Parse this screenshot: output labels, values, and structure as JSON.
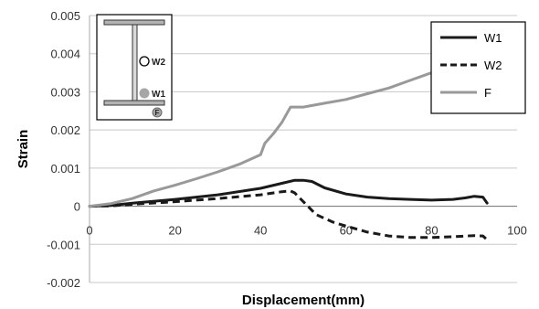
{
  "chart_data": {
    "type": "line",
    "title": "",
    "xlabel": "Displacement(mm)",
    "ylabel": "Strain",
    "xlim": [
      0,
      100
    ],
    "ylim": [
      -0.002,
      0.005
    ],
    "grid": true,
    "legend_position": "top-right",
    "x_ticks": [
      "0",
      "20",
      "40",
      "60",
      "80",
      "100"
    ],
    "y_ticks": [
      "-0.002",
      "-0.001",
      "0",
      "0.001",
      "0.002",
      "0.003",
      "0.004",
      "0.005"
    ],
    "series": [
      {
        "name": "W1",
        "color": "#1a1a1a",
        "dash": "solid",
        "points": [
          [
            0,
            0
          ],
          [
            5,
            2e-05
          ],
          [
            10,
            8e-05
          ],
          [
            20,
            0.00018
          ],
          [
            30,
            0.0003
          ],
          [
            40,
            0.00047
          ],
          [
            45,
            0.0006
          ],
          [
            48,
            0.00068
          ],
          [
            50,
            0.00068
          ],
          [
            52,
            0.00065
          ],
          [
            55,
            0.00048
          ],
          [
            60,
            0.00032
          ],
          [
            65,
            0.00024
          ],
          [
            70,
            0.0002
          ],
          [
            75,
            0.00018
          ],
          [
            80,
            0.00016
          ],
          [
            85,
            0.00018
          ],
          [
            88,
            0.00022
          ],
          [
            90,
            0.00026
          ],
          [
            92,
            0.00024
          ],
          [
            93,
            8e-05
          ]
        ]
      },
      {
        "name": "W2",
        "color": "#1a1a1a",
        "dash": "dashed",
        "points": [
          [
            0,
            0
          ],
          [
            5,
            1e-05
          ],
          [
            10,
            5e-05
          ],
          [
            20,
            0.00012
          ],
          [
            30,
            0.0002
          ],
          [
            40,
            0.0003
          ],
          [
            45,
            0.00038
          ],
          [
            47,
            0.0004
          ],
          [
            48,
            0.00035
          ],
          [
            50,
            0.00012
          ],
          [
            53,
            -0.00022
          ],
          [
            57,
            -0.00042
          ],
          [
            60,
            -0.00052
          ],
          [
            65,
            -0.00068
          ],
          [
            70,
            -0.00078
          ],
          [
            75,
            -0.00082
          ],
          [
            80,
            -0.00082
          ],
          [
            85,
            -0.0008
          ],
          [
            90,
            -0.00077
          ],
          [
            92,
            -0.00078
          ],
          [
            93,
            -0.00088
          ]
        ]
      },
      {
        "name": "F",
        "color": "#999999",
        "dash": "solid",
        "points": [
          [
            0,
            0
          ],
          [
            5,
            7e-05
          ],
          [
            10,
            0.0002
          ],
          [
            15,
            0.0004
          ],
          [
            20,
            0.00055
          ],
          [
            25,
            0.00072
          ],
          [
            30,
            0.0009
          ],
          [
            35,
            0.0011
          ],
          [
            40,
            0.00135
          ],
          [
            41,
            0.00165
          ],
          [
            43,
            0.0019
          ],
          [
            45,
            0.0022
          ],
          [
            47,
            0.0026
          ],
          [
            48,
            0.0026
          ],
          [
            50,
            0.0026
          ],
          [
            55,
            0.0027
          ],
          [
            60,
            0.0028
          ],
          [
            65,
            0.00295
          ],
          [
            70,
            0.0031
          ],
          [
            75,
            0.0033
          ],
          [
            80,
            0.0035
          ],
          [
            85,
            0.0037
          ],
          [
            88,
            0.0038
          ]
        ]
      }
    ],
    "inset": {
      "labels": [
        "W2",
        "W1",
        "F"
      ]
    }
  }
}
